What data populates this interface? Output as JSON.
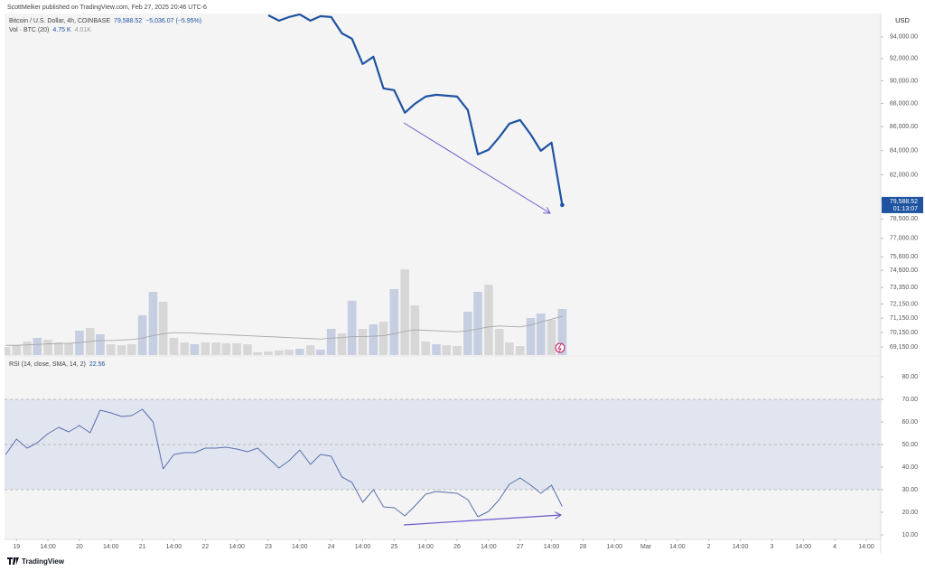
{
  "header": {
    "publisher": "ScottMelker published on TradingView.com, Feb 27, 2025 20:46 UTC-6"
  },
  "legend": {
    "symbol": "Bitcoin / U.S. Dollar, 4h, COINBASE",
    "last": "79,588.52",
    "change": "−5,036.07 (−5.95%)",
    "volume_title": "Vol · BTC (20)",
    "volume_value": "4.75 K",
    "volume_ma": "4.01K",
    "rsi_title": "RSI (14, close, SMA, 14, 2)",
    "rsi_value": "22.56"
  },
  "price_axis": {
    "currency": "USD",
    "last_label": "79,588.52",
    "countdown": "01:13:07"
  },
  "footer": {
    "brand": "TradingView"
  },
  "chart_data": [
    {
      "type": "line",
      "log_scale": true,
      "color": "#1e53a0",
      "x": [
        23,
        23.17,
        23.33,
        23.5,
        23.67,
        23.83,
        24,
        24.17,
        24.33,
        24.5,
        24.67,
        24.83,
        25,
        25.17,
        25.33,
        25.5,
        25.67,
        25.83,
        26,
        26.17,
        26.33,
        26.5,
        26.67,
        26.83,
        27,
        27.17,
        27.33,
        27.5,
        27.67
      ],
      "values": [
        96040,
        95525,
        95868,
        96120,
        95525,
        95954,
        95868,
        94337,
        93830,
        91510,
        92170,
        89330,
        89170,
        87200,
        87980,
        88610,
        88770,
        88690,
        88610,
        87430,
        83680,
        84060,
        85120,
        86260,
        86580,
        85340,
        83980,
        84660,
        79588.52
      ],
      "xlim": [
        18.81,
        32.73
      ],
      "ylim": [
        68600,
        96200
      ],
      "yticks": [
        {
          "value": 94000,
          "label": "94,000.00"
        },
        {
          "value": 92000,
          "label": "92,000.00"
        },
        {
          "value": 90000,
          "label": "90,000.00"
        },
        {
          "value": 88000,
          "label": "88,000.00"
        },
        {
          "value": 86000,
          "label": "86,000.00"
        },
        {
          "value": 84000,
          "label": "84,000.00"
        },
        {
          "value": 82000,
          "label": "82,000.00"
        },
        {
          "value": 80000,
          "label": "80,000.00"
        },
        {
          "value": 78500,
          "label": "78,500.00"
        },
        {
          "value": 77000,
          "label": "77,000.00"
        },
        {
          "value": 75600,
          "label": "75,600.00"
        },
        {
          "value": 74600,
          "label": "74,600.00"
        },
        {
          "value": 73350,
          "label": "73,350.00"
        },
        {
          "value": 72150,
          "label": "72,150.00"
        },
        {
          "value": 71150,
          "label": "71,150.00"
        },
        {
          "value": 70150,
          "label": "70,150.00"
        },
        {
          "value": 69150,
          "label": "69,150.00"
        }
      ]
    },
    {
      "type": "bar",
      "x": [
        18.83,
        19,
        19.17,
        19.33,
        19.5,
        19.67,
        19.83,
        20,
        20.17,
        20.33,
        20.5,
        20.67,
        20.83,
        21,
        21.17,
        21.33,
        21.5,
        21.67,
        21.83,
        22,
        22.17,
        22.33,
        22.5,
        22.67,
        22.83,
        23,
        23.17,
        23.33,
        23.5,
        23.67,
        23.83,
        24,
        24.17,
        24.33,
        24.5,
        24.67,
        24.83,
        25,
        25.17,
        25.33,
        25.5,
        25.67,
        25.83,
        26,
        26.17,
        26.33,
        26.5,
        26.67,
        26.83,
        27,
        27.17,
        27.33,
        27.5,
        27.67
      ],
      "values": [
        0.84,
        1.02,
        1.4,
        1.77,
        1.58,
        1.3,
        1.21,
        2.51,
        2.79,
        2.14,
        1.12,
        1.02,
        1.12,
        4.1,
        6.52,
        5.49,
        1.77,
        1.3,
        1.12,
        1.3,
        1.3,
        1.21,
        1.21,
        1.12,
        0.28,
        0.37,
        0.47,
        0.56,
        0.65,
        1.02,
        0.56,
        2.7,
        2.23,
        5.59,
        2.7,
        3.17,
        3.44,
        6.8,
        8.84,
        5.12,
        1.4,
        1.12,
        1.02,
        0.93,
        4.47,
        6.52,
        7.26,
        2.7,
        1.3,
        0.93,
        3.82,
        4.28,
        3.63,
        4.75
      ],
      "colors": [
        "#d7d7d7",
        "#d7d7d7",
        "#d7d7d7",
        "#c6cee2",
        "#d7d7d7",
        "#d7d7d7",
        "#d7d7d7",
        "#c6cee2",
        "#d7d7d7",
        "#c6cee2",
        "#d7d7d7",
        "#d7d7d7",
        "#d7d7d7",
        "#c6cee2",
        "#c6cee2",
        "#d7d7d7",
        "#d7d7d7",
        "#d7d7d7",
        "#c6cee2",
        "#d7d7d7",
        "#d7d7d7",
        "#d7d7d7",
        "#d7d7d7",
        "#d7d7d7",
        "#d7d7d7",
        "#d7d7d7",
        "#d7d7d7",
        "#d7d7d7",
        "#c6cee2",
        "#d7d7d7",
        "#c6cee2",
        "#c6cee2",
        "#d7d7d7",
        "#c6cee2",
        "#d7d7d7",
        "#c6cee2",
        "#d7d7d7",
        "#c6cee2",
        "#d7d7d7",
        "#d7d7d7",
        "#d7d7d7",
        "#c6cee2",
        "#d7d7d7",
        "#d7d7d7",
        "#c6cee2",
        "#c6cee2",
        "#d7d7d7",
        "#d7d7d7",
        "#d7d7d7",
        "#d7d7d7",
        "#c6cee2",
        "#c6cee2",
        "#d7d7d7",
        "#c6cee2"
      ],
      "ma": {
        "color": "#a8a8a8",
        "values": [
          1.0,
          1.0,
          1.05,
          1.1,
          1.15,
          1.2,
          1.2,
          1.3,
          1.4,
          1.5,
          1.5,
          1.55,
          1.6,
          1.75,
          2.0,
          2.2,
          2.3,
          2.3,
          2.25,
          2.2,
          2.15,
          2.1,
          2.05,
          2.0,
          1.95,
          1.9,
          1.85,
          1.8,
          1.75,
          1.7,
          1.65,
          1.75,
          1.8,
          1.9,
          1.9,
          1.95,
          2.0,
          2.2,
          2.45,
          2.6,
          2.55,
          2.5,
          2.45,
          2.4,
          2.5,
          2.7,
          2.9,
          3.0,
          2.95,
          2.9,
          3.1,
          3.4,
          3.7,
          4.01
        ]
      },
      "xlim": [
        18.81,
        32.73
      ],
      "ylim": [
        0,
        35.2
      ]
    },
    {
      "type": "line",
      "color": "#5b6fb0",
      "x": [
        18.83,
        19,
        19.17,
        19.33,
        19.5,
        19.67,
        19.83,
        20,
        20.17,
        20.33,
        20.5,
        20.67,
        20.83,
        21,
        21.17,
        21.33,
        21.5,
        21.67,
        21.83,
        22,
        22.17,
        22.33,
        22.5,
        22.67,
        22.83,
        23,
        23.17,
        23.33,
        23.5,
        23.67,
        23.83,
        24,
        24.17,
        24.33,
        24.5,
        24.67,
        24.83,
        25,
        25.17,
        25.33,
        25.5,
        25.67,
        25.83,
        26,
        26.17,
        26.33,
        26.5,
        26.67,
        26.83,
        27,
        27.17,
        27.33,
        27.5,
        27.67
      ],
      "values": [
        45.6,
        52.4,
        48.4,
        50.8,
        54.8,
        57.6,
        55.6,
        58.4,
        55.2,
        65.2,
        64.0,
        62.4,
        62.8,
        65.6,
        60.0,
        39.2,
        45.6,
        46.4,
        46.4,
        48.4,
        48.4,
        48.8,
        48.0,
        46.8,
        48.4,
        44.0,
        39.6,
        42.8,
        47.6,
        41.2,
        45.6,
        44.8,
        35.6,
        33.2,
        24.4,
        30.0,
        22.4,
        22.0,
        18.4,
        22.8,
        28.0,
        29.2,
        28.8,
        28.4,
        25.6,
        18.0,
        20.4,
        25.6,
        32.4,
        35.2,
        32.0,
        28.4,
        32.0,
        22.56
      ],
      "band": [
        30,
        70
      ],
      "levels": [
        70,
        50,
        30
      ],
      "xlim": [
        18.81,
        32.73
      ],
      "ylim": [
        8,
        88.8
      ],
      "yticks": [
        {
          "value": 80,
          "label": "80.00"
        },
        {
          "value": 70,
          "label": "70.00"
        },
        {
          "value": 60,
          "label": "60.00"
        },
        {
          "value": 50,
          "label": "50.00"
        },
        {
          "value": 40,
          "label": "40.00"
        },
        {
          "value": 30,
          "label": "30.00"
        },
        {
          "value": 20,
          "label": "20.00"
        },
        {
          "value": 10,
          "label": "10.00"
        }
      ],
      "xticks": [
        19,
        {
          "value": 19.5,
          "label": "14:00"
        },
        20,
        {
          "value": 20.5,
          "label": "14:00"
        },
        21,
        {
          "value": 21.5,
          "label": "14:00"
        },
        22,
        {
          "value": 22.5,
          "label": "14:00"
        },
        23,
        {
          "value": 23.5,
          "label": "14:00"
        },
        24,
        {
          "value": 24.5,
          "label": "14:00"
        },
        25,
        {
          "value": 25.5,
          "label": "14:00"
        },
        26,
        {
          "value": 26.5,
          "label": "14:00"
        },
        27,
        {
          "value": 27.5,
          "label": "14:00"
        },
        28,
        {
          "value": 28.5,
          "label": "14:00"
        },
        {
          "value": 29,
          "label": "Mar"
        },
        {
          "value": 29.5,
          "label": "14:00"
        },
        {
          "value": 30,
          "label": "2"
        },
        {
          "value": 30.5,
          "label": "14:00"
        },
        {
          "value": 31,
          "label": "3"
        },
        {
          "value": 31.5,
          "label": "14:00"
        },
        {
          "value": 32,
          "label": "4"
        },
        {
          "value": 32.5,
          "label": "14:00"
        }
      ]
    }
  ]
}
